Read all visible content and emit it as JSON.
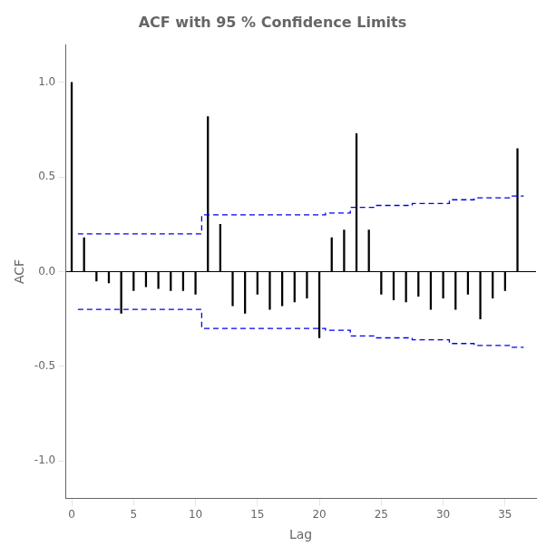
{
  "chart_data": {
    "type": "stem",
    "title": "ACF with 95 % Confidence Limits",
    "xlabel": "Lag",
    "ylabel": "ACF",
    "xlim": [
      -0.5,
      37.5
    ],
    "ylim": [
      -1.2,
      1.2
    ],
    "xticks": [
      0,
      5,
      10,
      15,
      20,
      25,
      30,
      35
    ],
    "yticks": [
      {
        "value": -1.0,
        "label": "-1.0"
      },
      -0.5,
      {
        "value": 0.0,
        "label": "0.0"
      },
      0.5,
      {
        "value": 1.0,
        "label": "1.0"
      }
    ],
    "grid": false,
    "series": [
      {
        "type": "stem",
        "color": "#000000",
        "x": [
          0,
          1,
          2,
          3,
          4,
          5,
          6,
          7,
          8,
          9,
          10,
          11,
          12,
          13,
          14,
          15,
          16,
          17,
          18,
          19,
          20,
          21,
          22,
          23,
          24,
          25,
          26,
          27,
          28,
          29,
          30,
          31,
          32,
          33,
          34,
          35,
          36
        ],
        "values": [
          1.0,
          0.18,
          -0.05,
          -0.06,
          -0.22,
          -0.1,
          -0.08,
          -0.09,
          -0.1,
          -0.1,
          -0.12,
          0.82,
          0.25,
          -0.18,
          -0.22,
          -0.12,
          -0.2,
          -0.18,
          -0.16,
          -0.14,
          -0.35,
          0.18,
          0.22,
          0.73,
          0.22,
          -0.12,
          -0.15,
          -0.16,
          -0.13,
          -0.2,
          -0.14,
          -0.2,
          -0.12,
          -0.25,
          -0.14,
          -0.1,
          0.65
        ]
      },
      {
        "type": "step",
        "color": "#0000ee",
        "line_style": "dashed",
        "marker": "none",
        "x": [
          1,
          2,
          3,
          4,
          5,
          6,
          7,
          8,
          9,
          10,
          11,
          12,
          13,
          14,
          15,
          16,
          17,
          18,
          19,
          20,
          21,
          22,
          23,
          24,
          25,
          26,
          27,
          28,
          29,
          30,
          31,
          32,
          33,
          34,
          35,
          36
        ],
        "values": [
          0.2,
          0.2,
          0.2,
          0.2,
          0.2,
          0.2,
          0.2,
          0.2,
          0.2,
          0.2,
          0.3,
          0.3,
          0.3,
          0.3,
          0.3,
          0.3,
          0.3,
          0.3,
          0.3,
          0.3,
          0.31,
          0.31,
          0.34,
          0.34,
          0.35,
          0.35,
          0.35,
          0.36,
          0.36,
          0.36,
          0.38,
          0.38,
          0.39,
          0.39,
          0.39,
          0.4
        ]
      },
      {
        "type": "step",
        "color": "#0000ee",
        "line_style": "dashed",
        "marker": "none",
        "x": [
          1,
          2,
          3,
          4,
          5,
          6,
          7,
          8,
          9,
          10,
          11,
          12,
          13,
          14,
          15,
          16,
          17,
          18,
          19,
          20,
          21,
          22,
          23,
          24,
          25,
          26,
          27,
          28,
          29,
          30,
          31,
          32,
          33,
          34,
          35,
          36
        ],
        "values": [
          -0.2,
          -0.2,
          -0.2,
          -0.2,
          -0.2,
          -0.2,
          -0.2,
          -0.2,
          -0.2,
          -0.2,
          -0.3,
          -0.3,
          -0.3,
          -0.3,
          -0.3,
          -0.3,
          -0.3,
          -0.3,
          -0.3,
          -0.3,
          -0.31,
          -0.31,
          -0.34,
          -0.34,
          -0.35,
          -0.35,
          -0.35,
          -0.36,
          -0.36,
          -0.36,
          -0.38,
          -0.38,
          -0.39,
          -0.39,
          -0.39,
          -0.4
        ]
      }
    ]
  }
}
